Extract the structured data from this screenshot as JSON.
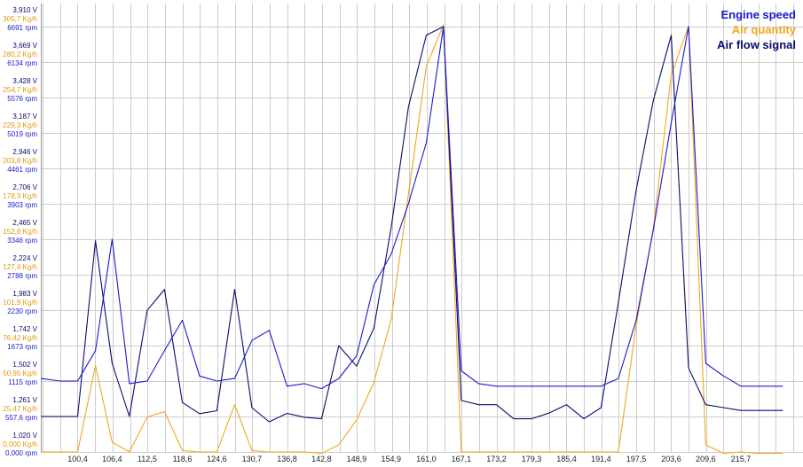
{
  "chart_data": {
    "type": "line",
    "title": "",
    "legend": [
      "Engine speed",
      "Air quantity",
      "Air flow signal"
    ],
    "legend_position": "top-right",
    "grid": true,
    "colors": {
      "engine_speed": "#1a1ad0",
      "air_quantity": "#f0a820",
      "air_flow_signal": "#0a0a6e",
      "grid": "#cccccc",
      "voltage_label": "#0a0a6e",
      "air_label": "#e09a10",
      "rpm_label": "#1a1ad0"
    },
    "x_ticks": [
      "100,4",
      "106,4",
      "112,5",
      "118,6",
      "124,6",
      "130,7",
      "136,8",
      "142,8",
      "148,9",
      "154,9",
      "161,0",
      "167,1",
      "173,2",
      "179,3",
      "185,4",
      "191,4",
      "197,5",
      "203,6",
      "209,6",
      "215,7"
    ],
    "x_range": [
      94.0,
      226.5
    ],
    "y_axes": [
      {
        "name": "voltage",
        "ticks": [
          "1,020 V",
          "1,261 V",
          "1,502 V",
          "1,742 V",
          "1,983 V",
          "2,224 V",
          "2,465 V",
          "2,706 V",
          "2,946 V",
          "3,187 V",
          "3,428 V",
          "3,669 V",
          "3,910 V"
        ]
      },
      {
        "name": "air_quantity",
        "ticks": [
          "0,000 Kg/h",
          "25,47 Kg/h",
          "50,95 Kg/h",
          "76,42 Kg/h",
          "101,9 Kg/h",
          "127,4 Kg/h",
          "152,8 Kg/h",
          "178,3 Kg/h",
          "203,8 Kg/h",
          "229,3 Kg/h",
          "254,7 Kg/h",
          "280,2 Kg/h",
          "305,7 Kg/h"
        ]
      },
      {
        "name": "engine_speed",
        "ticks": [
          "0,000 rpm",
          "557,6 rpm",
          "1115 rpm",
          "1673 rpm",
          "2230 rpm",
          "2788 rpm",
          "3346 rpm",
          "3903 rpm",
          "4461 rpm",
          "5019 rpm",
          "5576 rpm",
          "6134 rpm",
          "6691 rpm"
        ]
      }
    ],
    "series": [
      {
        "name": "Engine speed",
        "unit": "rpm",
        "x": [
          94.0,
          97.4,
          100.4,
          103.5,
          106.4,
          109.4,
          112.5,
          115.5,
          118.6,
          121.6,
          124.6,
          127.7,
          130.7,
          133.7,
          136.8,
          139.8,
          142.8,
          145.8,
          148.9,
          151.9,
          154.9,
          157.9,
          161.0,
          164.0,
          167.1,
          170.1,
          173.2,
          176.2,
          179.3,
          182.3,
          185.4,
          188.4,
          191.4,
          194.4,
          197.5,
          200.5,
          203.6,
          206.6,
          209.6,
          212.7,
          215.7,
          218.7,
          223.0
        ],
        "values": [
          1155,
          1115,
          1115,
          1593,
          3346,
          1075,
          1115,
          1594,
          2071,
          1195,
          1115,
          1155,
          1753,
          1912,
          1035,
          1075,
          995,
          1155,
          1513,
          2629,
          3108,
          3904,
          4859,
          6691,
          1276,
          1075,
          1035,
          1035,
          1035,
          1035,
          1035,
          1035,
          1035,
          1155,
          2071,
          3505,
          5177,
          6691,
          1394,
          1195,
          1035,
          1035,
          1035
        ]
      },
      {
        "name": "Air quantity",
        "unit": "Kg/h",
        "x": [
          94.0,
          97.4,
          100.4,
          103.5,
          106.4,
          109.4,
          112.5,
          115.5,
          118.6,
          121.6,
          124.6,
          127.7,
          130.7,
          133.7,
          136.8,
          139.8,
          142.8,
          145.8,
          148.9,
          151.9,
          154.9,
          157.9,
          161.0,
          164.0,
          167.1,
          170.1,
          173.2,
          176.2,
          179.3,
          182.3,
          185.4,
          188.4,
          191.4,
          194.4,
          197.5,
          200.5,
          203.6,
          206.6,
          209.6,
          212.7,
          215.7,
          218.7,
          223.0
        ],
        "values": [
          0,
          0,
          0,
          62,
          7,
          0,
          25,
          29,
          1,
          0,
          0,
          34,
          1,
          0,
          0,
          0,
          -1,
          5,
          23,
          50,
          95,
          185,
          277,
          307,
          0,
          0,
          0,
          0,
          0,
          0,
          0,
          0,
          0,
          0,
          91,
          161,
          271,
          306,
          5,
          -1,
          0,
          -1,
          -1
        ]
      },
      {
        "name": "Air flow signal",
        "unit": "V",
        "x": [
          94.0,
          97.4,
          100.4,
          103.5,
          106.4,
          109.4,
          112.5,
          115.5,
          118.6,
          121.6,
          124.6,
          127.7,
          130.7,
          133.7,
          136.8,
          139.8,
          142.8,
          145.8,
          148.9,
          151.9,
          154.9,
          157.9,
          161.0,
          164.0,
          167.1,
          170.1,
          173.2,
          176.2,
          179.3,
          182.3,
          185.4,
          188.4,
          191.4,
          194.4,
          197.5,
          200.5,
          203.6,
          206.6,
          209.6,
          212.7,
          215.7,
          218.7,
          223.0
        ],
        "values": [
          1.261,
          1.261,
          1.261,
          2.455,
          1.622,
          1.261,
          1.982,
          2.124,
          1.356,
          1.28,
          1.3,
          2.124,
          1.321,
          1.225,
          1.282,
          1.256,
          1.245,
          1.742,
          1.603,
          1.862,
          2.542,
          3.363,
          3.851,
          3.91,
          1.37,
          1.341,
          1.341,
          1.245,
          1.245,
          1.284,
          1.341,
          1.245,
          1.321,
          2.036,
          2.8,
          3.41,
          3.851,
          1.591,
          1.341,
          1.321,
          1.302,
          1.302,
          1.302
        ]
      }
    ]
  }
}
